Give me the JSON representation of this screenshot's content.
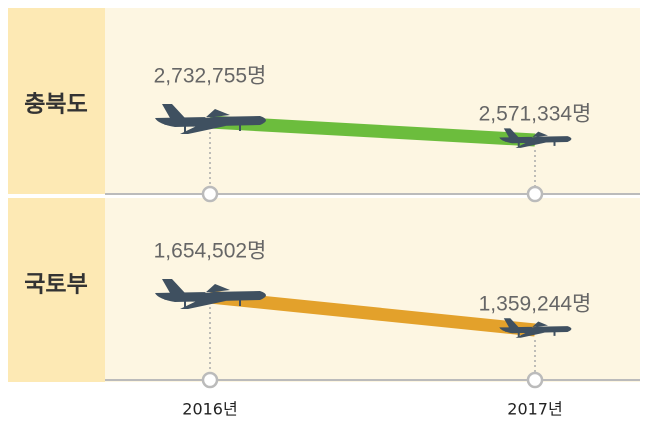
{
  "chart_data": {
    "type": "slope",
    "categories": [
      "2016년",
      "2017년"
    ],
    "series": [
      {
        "name": "충북도",
        "color": "#6cbd3d",
        "values": [
          2732755,
          2571334
        ],
        "value_labels": [
          "2,732,755명",
          "2,571,334명"
        ]
      },
      {
        "name": "국토부",
        "color": "#e3a12b",
        "values": [
          1654502,
          1359244
        ],
        "value_labels": [
          "1,654,502명",
          "1,359,244명"
        ]
      }
    ]
  }
}
